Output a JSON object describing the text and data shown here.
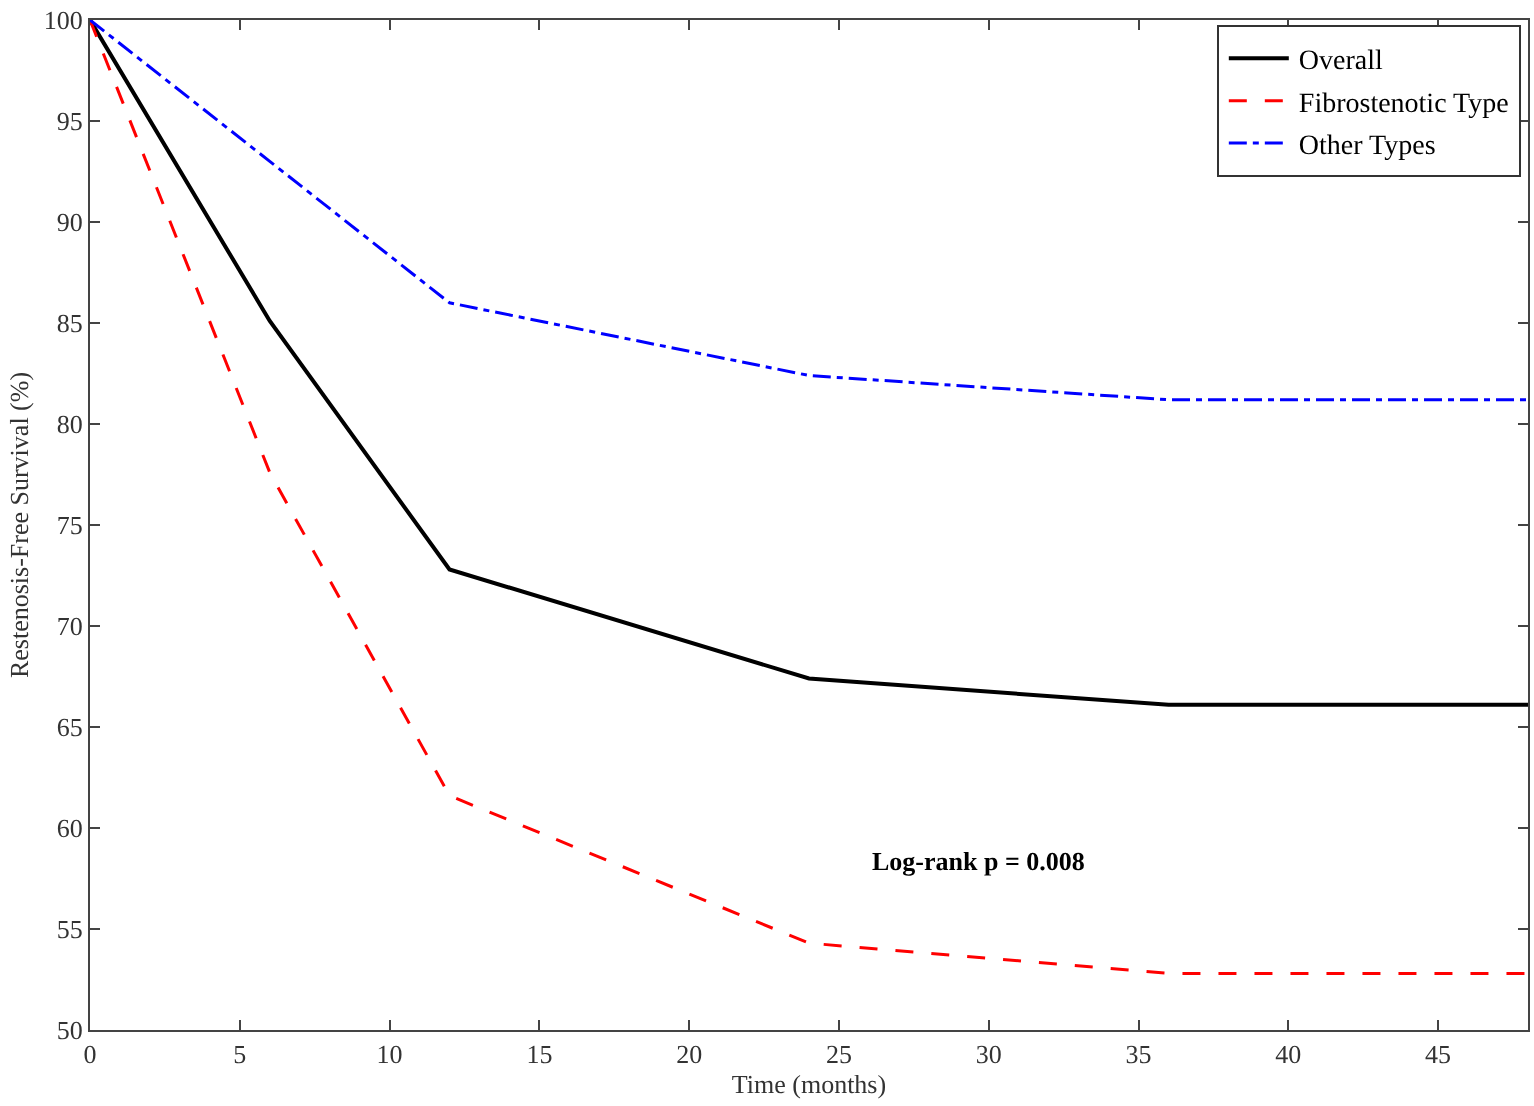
{
  "chart_data": {
    "type": "line",
    "xlabel": "Time (months)",
    "ylabel": "Restenosis-Free Survival (%)",
    "x": [
      0,
      6,
      12,
      24,
      36,
      48
    ],
    "series": [
      {
        "name": "Overall",
        "color": "#000000",
        "line_style": "solid",
        "values": [
          100,
          85.1,
          72.8,
          67.4,
          66.1,
          66.1
        ]
      },
      {
        "name": "Fibrostenotic Type",
        "color": "#ff0000",
        "line_style": "dashed",
        "values": [
          100,
          77.6,
          61.6,
          54.3,
          52.8,
          52.8
        ]
      },
      {
        "name": "Other Types",
        "color": "#0000ff",
        "line_style": "dashdot",
        "values": [
          100,
          93,
          86.0,
          82.4,
          81.2,
          81.2
        ]
      }
    ],
    "xlim": [
      0,
      48
    ],
    "xticks": [
      0,
      5,
      10,
      15,
      20,
      25,
      30,
      35,
      40,
      45
    ],
    "ylim": [
      50,
      100
    ],
    "yticks": [
      50,
      55,
      60,
      65,
      70,
      75,
      80,
      85,
      90,
      95,
      100
    ],
    "legend": "top right",
    "marker": "none",
    "annotations": [
      "Log-rank p = 0.008"
    ]
  }
}
